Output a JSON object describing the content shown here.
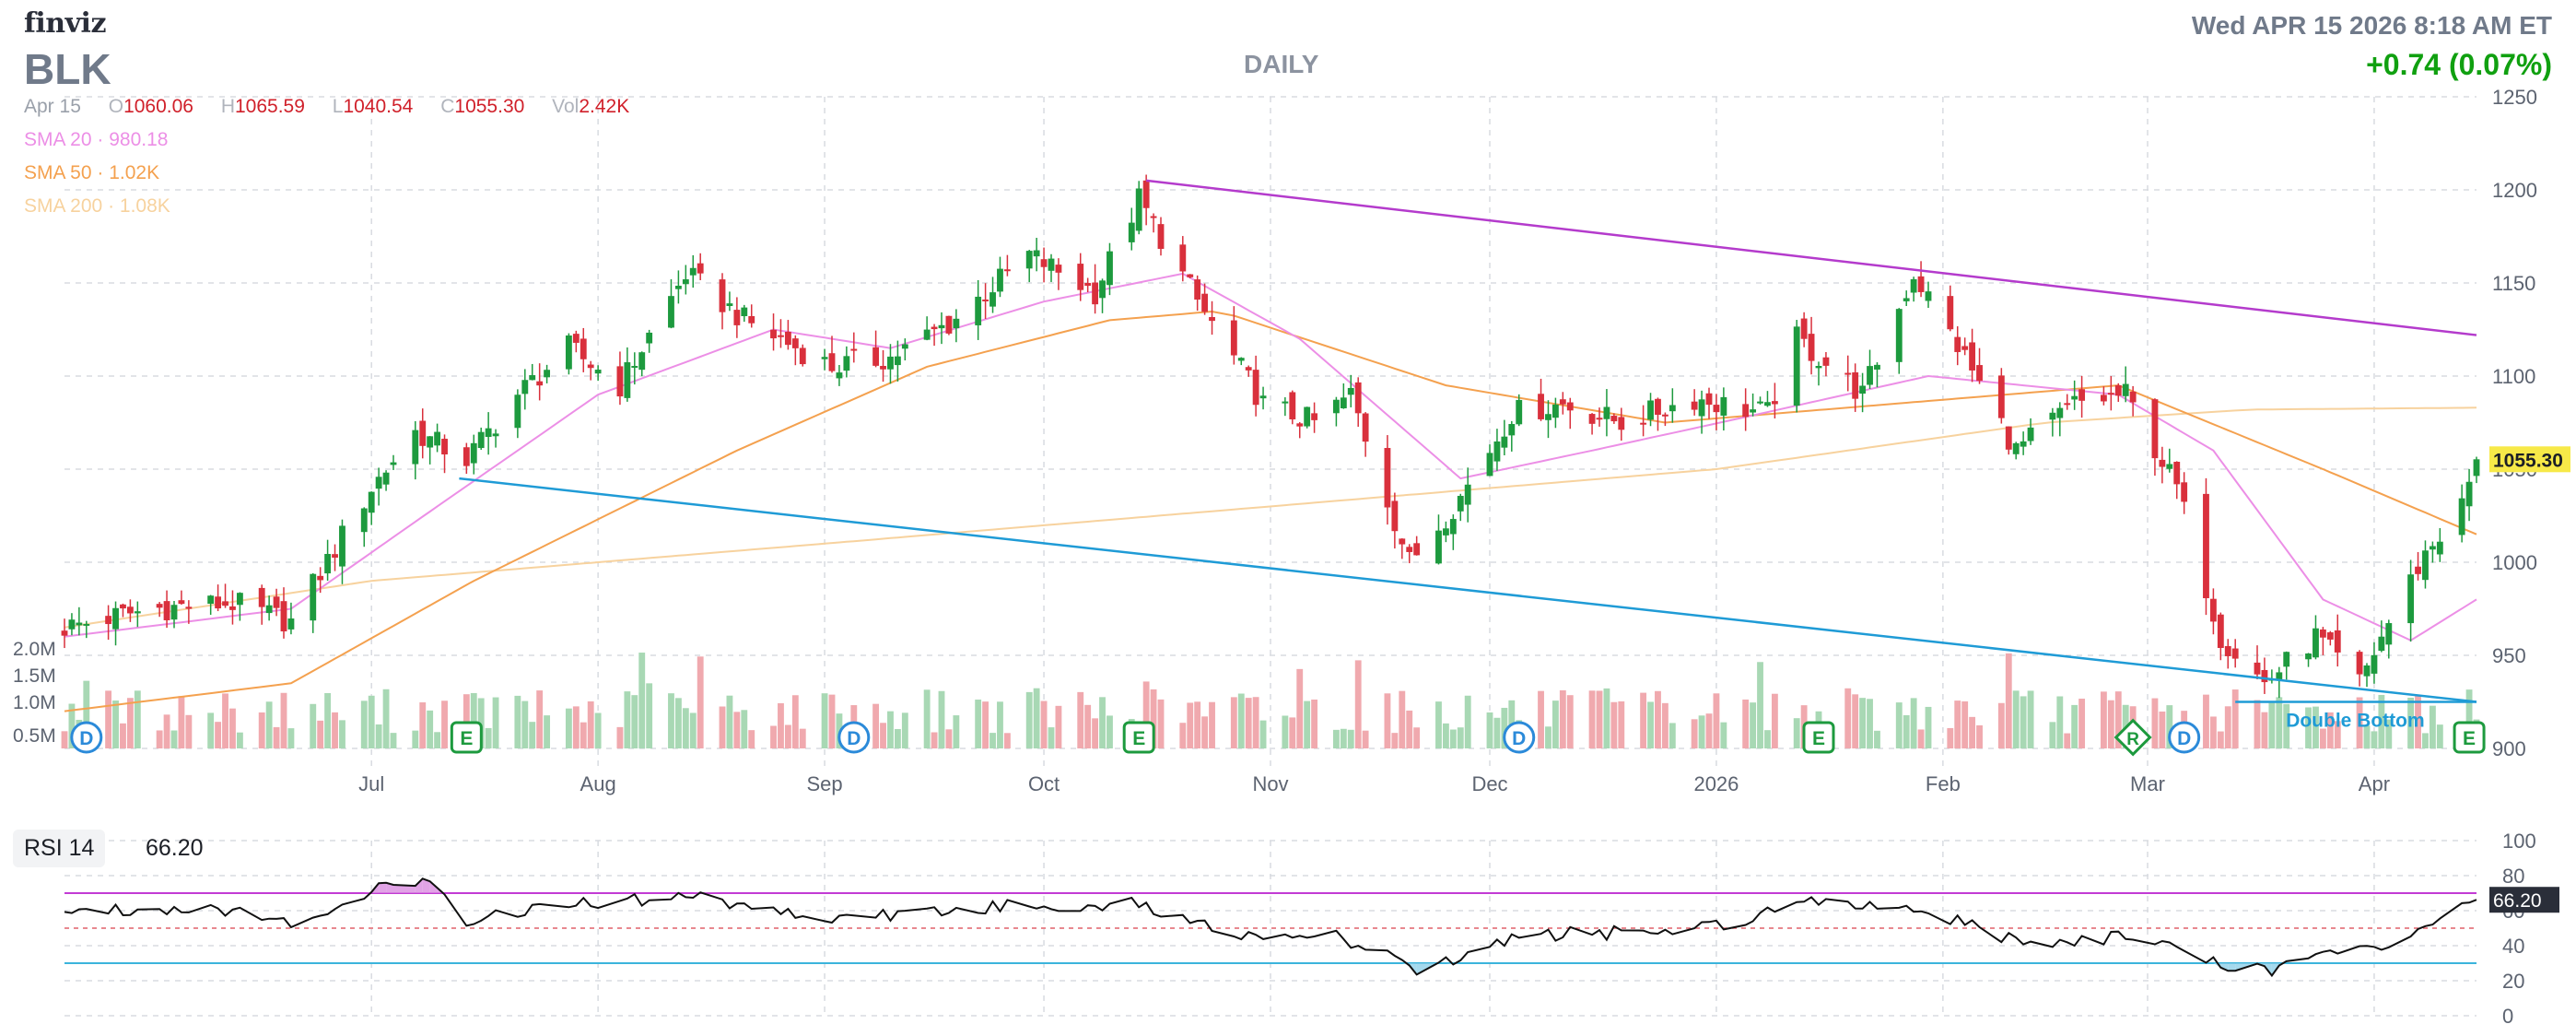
{
  "header": {
    "logo": "finviz",
    "ticker": "BLK",
    "timeframe": "DAILY",
    "datetime": "Wed APR 15 2026 8:18 AM ET",
    "change": "+0.74 (0.07%)"
  },
  "ohlc": {
    "date": "Apr 15",
    "o_label": "O",
    "o": "1060.06",
    "h_label": "H",
    "h": "1065.59",
    "l_label": "L",
    "l": "1040.54",
    "c_label": "C",
    "c": "1055.30",
    "vol_label": "Vol",
    "vol": "2.42K"
  },
  "sma_legend": [
    {
      "label": "SMA 20",
      "value": "980.18",
      "color": "#ec8fe6"
    },
    {
      "label": "SMA 50",
      "value": "1.02K",
      "color": "#f4a14f"
    },
    {
      "label": "SMA 200",
      "value": "1.08K",
      "color": "#f7d29e"
    }
  ],
  "rsi": {
    "label": "RSI 14",
    "value": "66.20"
  },
  "colors": {
    "up": "#1d9a3e",
    "down": "#d9303c",
    "vol_up": "#a8d8b4",
    "vol_down": "#f0a9ae",
    "sma20": "#ec8fe6",
    "sma50": "#f4a14f",
    "sma200": "#f7d29e",
    "trend_upper": "#b43bcc",
    "trend_lower": "#1f9bd6",
    "rsi_line": "#101010",
    "rsi_ob": "#c23bd4",
    "rsi_os": "#3bb4dc"
  },
  "chart_data": {
    "type": "candlestick",
    "x_range": [
      "2025-05-20",
      "2026-04-15"
    ],
    "x_ticks": [
      "Jul",
      "Aug",
      "Sep",
      "Oct",
      "Nov",
      "Dec",
      "2026",
      "Feb",
      "Mar",
      "Apr"
    ],
    "y_range": [
      900,
      1250
    ],
    "y_ticks": [
      900,
      950,
      1000,
      1050,
      1100,
      1150,
      1200,
      1250
    ],
    "volume_ticks": [
      "0.5M",
      "1.0M",
      "1.5M",
      "2.0M"
    ],
    "last_price_label": "1055.30",
    "anchors": [
      [
        "2025-05-20",
        965
      ],
      [
        "2025-06-01",
        975
      ],
      [
        "2025-06-12",
        978
      ],
      [
        "2025-06-20",
        968
      ],
      [
        "2025-07-01",
        1040
      ],
      [
        "2025-07-07",
        1070
      ],
      [
        "2025-07-14",
        1055
      ],
      [
        "2025-07-21",
        1090
      ],
      [
        "2025-07-28",
        1115
      ],
      [
        "2025-08-04",
        1095
      ],
      [
        "2025-08-13",
        1155
      ],
      [
        "2025-08-21",
        1130
      ],
      [
        "2025-09-02",
        1105
      ],
      [
        "2025-09-10",
        1110
      ],
      [
        "2025-09-18",
        1128
      ],
      [
        "2025-09-29",
        1165
      ],
      [
        "2025-10-08",
        1145
      ],
      [
        "2025-10-14",
        1195
      ],
      [
        "2025-10-22",
        1140
      ],
      [
        "2025-10-31",
        1085
      ],
      [
        "2025-11-07",
        1075
      ],
      [
        "2025-11-12",
        1090
      ],
      [
        "2025-11-20",
        1000
      ],
      [
        "2025-11-27",
        1035
      ],
      [
        "2025-12-04",
        1080
      ],
      [
        "2025-12-11",
        1085
      ],
      [
        "2025-12-19",
        1075
      ],
      [
        "2025-12-29",
        1088
      ],
      [
        "2026-01-08",
        1080
      ],
      [
        "2026-01-12",
        1120
      ],
      [
        "2026-01-21",
        1090
      ],
      [
        "2026-01-28",
        1155
      ],
      [
        "2026-02-04",
        1110
      ],
      [
        "2026-02-11",
        1060
      ],
      [
        "2026-02-19",
        1085
      ],
      [
        "2026-02-26",
        1090
      ],
      [
        "2026-03-05",
        1040
      ],
      [
        "2026-03-11",
        960
      ],
      [
        "2026-03-17",
        935
      ],
      [
        "2026-03-24",
        960
      ],
      [
        "2026-03-30",
        935
      ],
      [
        "2026-04-02",
        960
      ],
      [
        "2026-04-08",
        1005
      ],
      [
        "2026-04-13",
        1030
      ],
      [
        "2026-04-15",
        1055.3
      ]
    ],
    "sma20": [
      [
        "2025-05-20",
        960
      ],
      [
        "2025-06-20",
        975
      ],
      [
        "2025-07-10",
        1030
      ],
      [
        "2025-08-01",
        1090
      ],
      [
        "2025-08-25",
        1125
      ],
      [
        "2025-09-10",
        1115
      ],
      [
        "2025-10-01",
        1140
      ],
      [
        "2025-10-20",
        1155
      ],
      [
        "2025-11-05",
        1120
      ],
      [
        "2025-11-27",
        1045
      ],
      [
        "2025-12-15",
        1060
      ],
      [
        "2026-01-05",
        1078
      ],
      [
        "2026-01-30",
        1100
      ],
      [
        "2026-02-25",
        1090
      ],
      [
        "2026-03-10",
        1060
      ],
      [
        "2026-03-25",
        980
      ],
      [
        "2026-04-06",
        958
      ],
      [
        "2026-04-15",
        980
      ]
    ],
    "sma50": [
      [
        "2025-05-20",
        920
      ],
      [
        "2025-06-20",
        935
      ],
      [
        "2025-07-15",
        990
      ],
      [
        "2025-08-20",
        1060
      ],
      [
        "2025-09-15",
        1105
      ],
      [
        "2025-10-10",
        1130
      ],
      [
        "2025-10-25",
        1135
      ],
      [
        "2025-11-25",
        1095
      ],
      [
        "2025-12-25",
        1075
      ],
      [
        "2026-01-25",
        1085
      ],
      [
        "2026-02-25",
        1095
      ],
      [
        "2026-03-25",
        1050
      ],
      [
        "2026-04-15",
        1015
      ]
    ],
    "sma200": [
      [
        "2025-05-20",
        965
      ],
      [
        "2025-07-01",
        990
      ],
      [
        "2025-09-01",
        1010
      ],
      [
        "2025-11-01",
        1030
      ],
      [
        "2026-01-01",
        1050
      ],
      [
        "2026-02-15",
        1075
      ],
      [
        "2026-03-15",
        1082
      ],
      [
        "2026-04-15",
        1083
      ]
    ],
    "trendlines": [
      {
        "name": "upper",
        "from": [
          "2025-10-15",
          1205
        ],
        "to": [
          "2026-04-15",
          1122
        ]
      },
      {
        "name": "lower",
        "from": [
          "2025-07-13",
          1045
        ],
        "to": [
          "2026-04-15",
          925
        ]
      }
    ],
    "pattern": {
      "label": "Double Bottom",
      "from": [
        "2026-03-13",
        925
      ],
      "to": [
        "2026-04-15",
        925
      ]
    },
    "events": [
      {
        "type": "D",
        "date": "2025-05-23"
      },
      {
        "type": "E",
        "date": "2025-07-14"
      },
      {
        "type": "D",
        "date": "2025-09-05"
      },
      {
        "type": "E",
        "date": "2025-10-14"
      },
      {
        "type": "D",
        "date": "2025-12-05"
      },
      {
        "type": "E",
        "date": "2026-01-15"
      },
      {
        "type": "R",
        "date": "2026-02-27"
      },
      {
        "type": "D",
        "date": "2026-03-06"
      },
      {
        "type": "E",
        "date": "2026-04-14"
      }
    ],
    "rsi": {
      "y_range": [
        0,
        100
      ],
      "y_ticks": [
        0,
        20,
        40,
        60,
        80,
        100
      ],
      "overbought": 70,
      "oversold": 30,
      "mid": 50,
      "anchors": [
        [
          "2025-05-20",
          60
        ],
        [
          "2025-06-10",
          62
        ],
        [
          "2025-06-20",
          52
        ],
        [
          "2025-07-01",
          72
        ],
        [
          "2025-07-10",
          76
        ],
        [
          "2025-07-14",
          55
        ],
        [
          "2025-07-28",
          64
        ],
        [
          "2025-08-15",
          68
        ],
        [
          "2025-09-01",
          55
        ],
        [
          "2025-09-25",
          62
        ],
        [
          "2025-10-14",
          64
        ],
        [
          "2025-10-25",
          48
        ],
        [
          "2025-11-10",
          45
        ],
        [
          "2025-11-22",
          25
        ],
        [
          "2025-12-05",
          46
        ],
        [
          "2025-12-25",
          48
        ],
        [
          "2026-01-05",
          55
        ],
        [
          "2026-01-13",
          68
        ],
        [
          "2026-01-30",
          60
        ],
        [
          "2026-02-11",
          42
        ],
        [
          "2026-03-01",
          45
        ],
        [
          "2026-03-11",
          28
        ],
        [
          "2026-03-18",
          26
        ],
        [
          "2026-03-25",
          40
        ],
        [
          "2026-04-01",
          36
        ],
        [
          "2026-04-08",
          48
        ],
        [
          "2026-04-15",
          66.2
        ]
      ]
    }
  }
}
